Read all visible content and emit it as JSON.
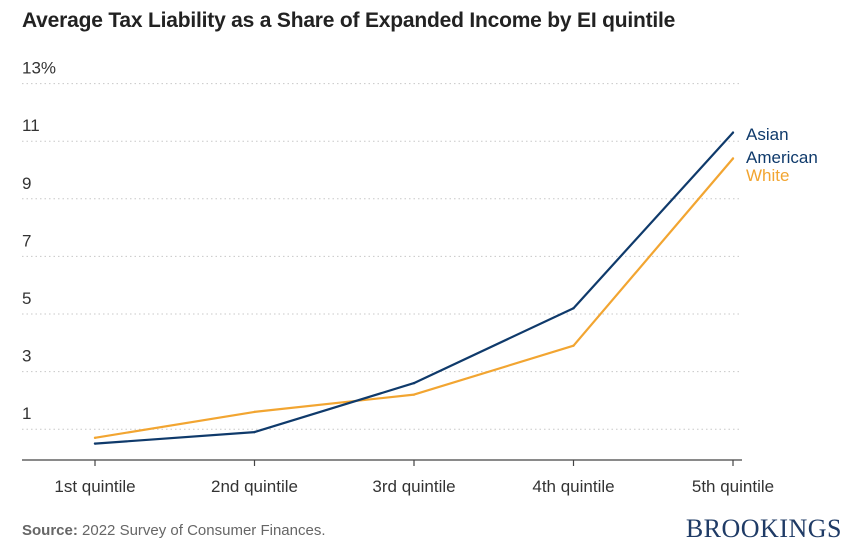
{
  "title": "Average Tax Liability as a Share of Expanded Income by EI quintile",
  "source_label": "Source:",
  "source_text": " 2022 Survey of Consumer Finances.",
  "brand": "BROOKINGS",
  "colors": {
    "asian_american": "#0f3a6b",
    "white": "#f2a531",
    "grid": "#c8c8c8",
    "axis": "#444444"
  },
  "chart_data": {
    "type": "line",
    "title": "Average Tax Liability as a Share of Expanded Income by EI quintile",
    "xlabel": "",
    "ylabel": "",
    "categories": [
      "1st quintile",
      "2nd quintile",
      "3rd quintile",
      "4th quintile",
      "5th quintile"
    ],
    "y_ticks": [
      1,
      3,
      5,
      7,
      9,
      11,
      13
    ],
    "y_tick_labels": [
      "1",
      "3",
      "5",
      "7",
      "9",
      "11",
      "13%"
    ],
    "ylim": [
      0,
      13
    ],
    "grid": true,
    "legend": "inline-right",
    "series": [
      {
        "name": "Asian American",
        "label_lines": [
          "Asian",
          "American"
        ],
        "color_key": "asian_american",
        "values": [
          0.5,
          0.9,
          2.6,
          5.2,
          11.3
        ]
      },
      {
        "name": "White",
        "label_lines": [
          "White"
        ],
        "color_key": "white",
        "values": [
          0.7,
          1.6,
          2.2,
          3.9,
          10.4
        ]
      }
    ]
  }
}
